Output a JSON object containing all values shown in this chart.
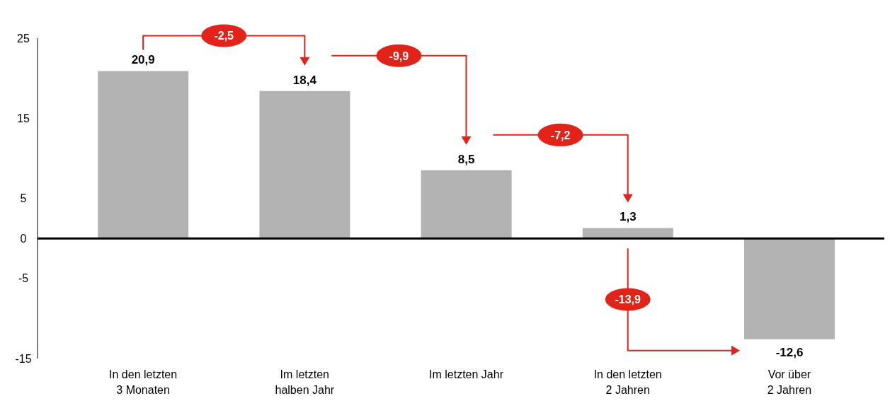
{
  "chart_data": {
    "type": "bar",
    "categories": [
      "In den letzten\n3 Monaten",
      "Im letzten\nhalben Jahr",
      "Im letzten Jahr",
      "In den letzten\n2 Jahren",
      "Vor über\n2 Jahren"
    ],
    "values": [
      20.9,
      18.4,
      8.5,
      1.3,
      -12.6
    ],
    "value_labels": [
      "20,9",
      "18,4",
      "8,5",
      "1,3",
      "-12,6"
    ],
    "color": "#b3b3b3",
    "ylim": [
      -15,
      25
    ],
    "yticks": [
      25,
      15,
      5,
      0,
      -5,
      -15
    ],
    "grid": false,
    "ref_lines": [
      {
        "axis": "y",
        "value": 0,
        "color": "#000000"
      }
    ],
    "annotations": [
      "-2,5",
      "-9,9",
      "-7,2",
      "-13,9"
    ]
  }
}
